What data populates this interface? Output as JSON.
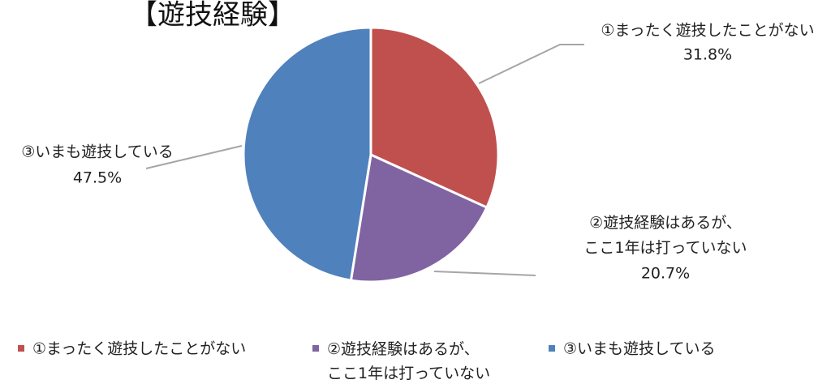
{
  "chart_data": {
    "type": "pie",
    "title": "【遊技経験】",
    "categories": [
      "①まったく遊技したことがない",
      "②遊技経験はあるが、\nここ1年は打っていない",
      "③いまも遊技している"
    ],
    "values": [
      31.8,
      20.7,
      47.5
    ],
    "value_labels": [
      "31.8%",
      "20.7%",
      "47.5%"
    ],
    "colors": [
      "#c0504d",
      "#8064a2",
      "#4f81bd"
    ],
    "legend": "bottom"
  }
}
